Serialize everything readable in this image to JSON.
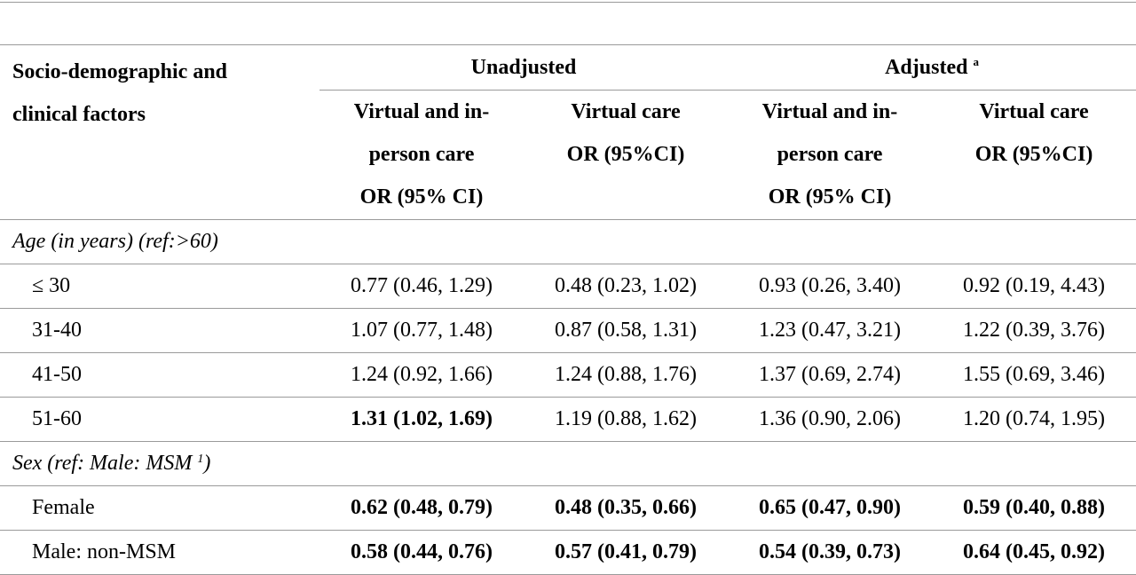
{
  "header": {
    "factor_line1": "Socio-demographic and",
    "factor_line2": "clinical factors",
    "unadjusted": "Unadjusted",
    "adjusted": "Adjusted",
    "adjusted_sup": "a",
    "col_virtual_inperson": [
      "Virtual and in-",
      "person care",
      "OR (95% CI)"
    ],
    "col_virtual": [
      "Virtual care",
      "OR (95%CI)"
    ]
  },
  "sections": [
    {
      "title": "Age (in years) (ref:>60)",
      "title_sup": "",
      "title_suffix": "",
      "rows": [
        {
          "label": "≤ 30",
          "values": [
            "0.77 (0.46, 1.29)",
            "0.48 (0.23, 1.02)",
            "0.93 (0.26, 3.40)",
            "0.92 (0.19, 4.43)"
          ],
          "bold": [
            false,
            false,
            false,
            false
          ]
        },
        {
          "label": "31-40",
          "values": [
            "1.07 (0.77, 1.48)",
            "0.87 (0.58, 1.31)",
            "1.23 (0.47, 3.21)",
            "1.22 (0.39, 3.76)"
          ],
          "bold": [
            false,
            false,
            false,
            false
          ]
        },
        {
          "label": "41-50",
          "values": [
            "1.24 (0.92, 1.66)",
            "1.24 (0.88, 1.76)",
            "1.37 (0.69, 2.74)",
            "1.55 (0.69, 3.46)"
          ],
          "bold": [
            false,
            false,
            false,
            false
          ]
        },
        {
          "label": "51-60",
          "values": [
            "1.31 (1.02, 1.69)",
            "1.19 (0.88, 1.62)",
            "1.36 (0.90, 2.06)",
            "1.20 (0.74, 1.95)"
          ],
          "bold": [
            true,
            false,
            false,
            false
          ]
        }
      ]
    },
    {
      "title": "Sex (ref: Male: MSM",
      "title_sup": "1",
      "title_suffix": ")",
      "rows": [
        {
          "label": "Female",
          "values": [
            "0.62 (0.48, 0.79)",
            "0.48 (0.35, 0.66)",
            "0.65 (0.47, 0.90)",
            "0.59 (0.40, 0.88)"
          ],
          "bold": [
            true,
            true,
            true,
            true
          ]
        },
        {
          "label": "Male: non-MSM",
          "values": [
            "0.58 (0.44, 0.76)",
            "0.57 (0.41, 0.79)",
            "0.54 (0.39, 0.73)",
            "0.64 (0.45, 0.92)"
          ],
          "bold": [
            true,
            true,
            true,
            true
          ]
        }
      ]
    }
  ]
}
